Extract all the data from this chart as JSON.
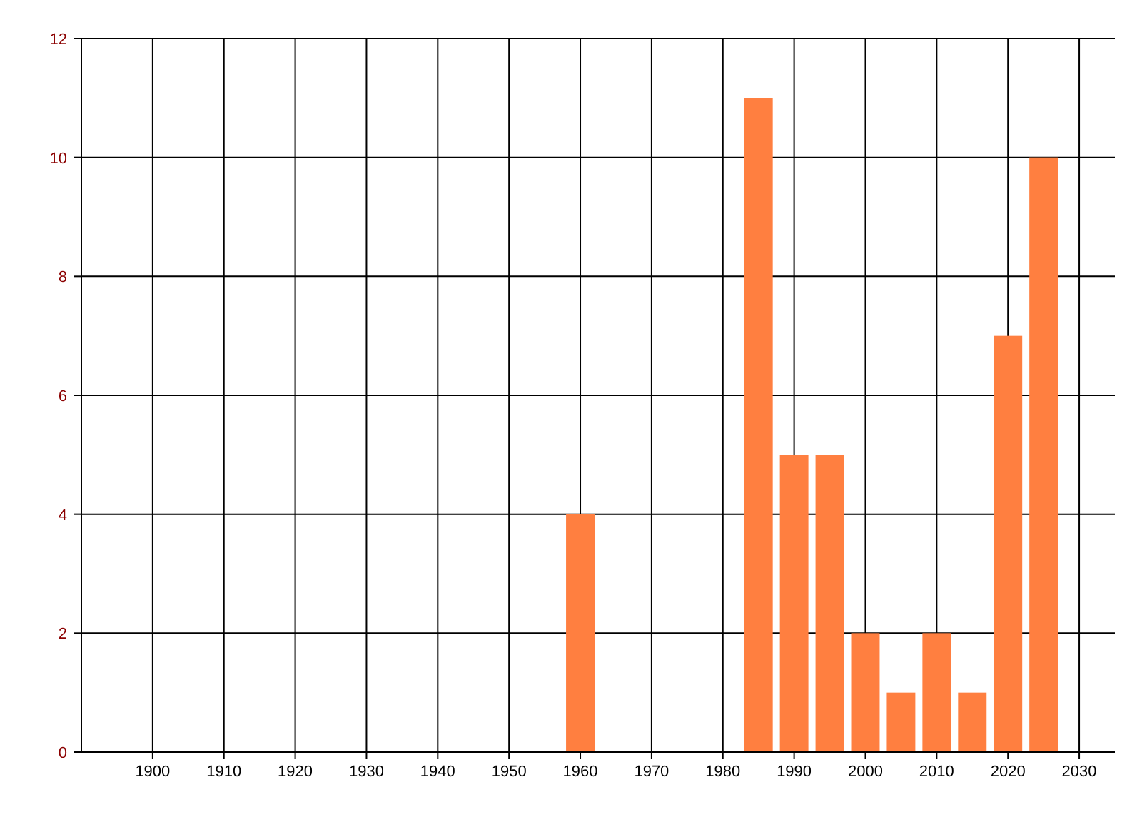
{
  "chart_data": {
    "type": "bar",
    "x": [
      1960,
      1985,
      1990,
      1995,
      2000,
      2005,
      2010,
      2015,
      2020,
      2025
    ],
    "values": [
      4,
      11,
      5,
      5,
      2,
      1,
      2,
      1,
      7,
      10
    ],
    "color": "#ff7f40",
    "xlim": [
      1890,
      2035
    ],
    "xticks": [
      1900,
      1910,
      1920,
      1930,
      1940,
      1950,
      1960,
      1970,
      1980,
      1990,
      2000,
      2010,
      2020,
      2030
    ],
    "ylim": [
      0,
      12
    ],
    "yticks": [
      0,
      2,
      4,
      6,
      8,
      10,
      12
    ],
    "grid": true
  }
}
